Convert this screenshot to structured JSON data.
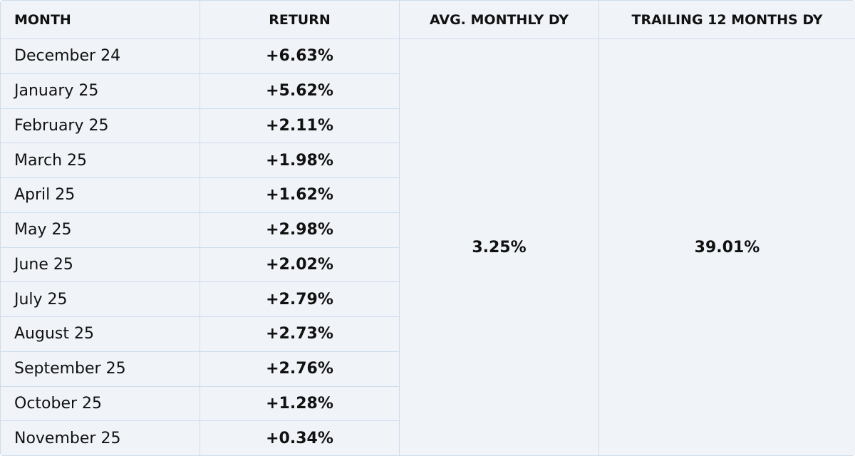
{
  "table": {
    "headers": [
      "MONTH",
      "RETURN",
      "AVG. MONTHLY DY",
      "TRAILING 12 MONTHS DY"
    ],
    "rows": [
      [
        "December 24",
        "+6.63%"
      ],
      [
        "January 25",
        "+5.62%"
      ],
      [
        "February 25",
        "+2.11%"
      ],
      [
        "March 25",
        "+1.98%"
      ],
      [
        "April 25",
        "+1.62%"
      ],
      [
        "May 25",
        "+2.98%"
      ],
      [
        "June 25",
        "+2.02%"
      ],
      [
        "July 25",
        "+2.79%"
      ],
      [
        "August 25",
        "+2.73%"
      ],
      [
        "September 25",
        "+2.76%"
      ],
      [
        "October 25",
        "+1.28%"
      ],
      [
        "November 25",
        "+0.34%"
      ]
    ],
    "summary": [
      "3.25%",
      "39.01%"
    ]
  }
}
